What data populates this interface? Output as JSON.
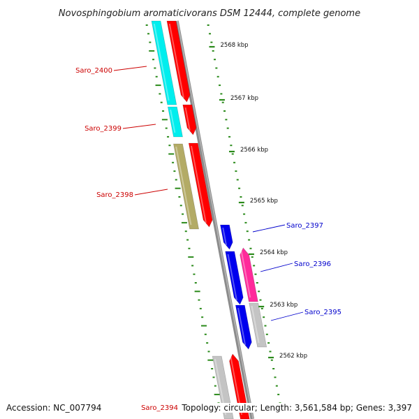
{
  "title": "Novosphingobium aromaticivorans DSM 12444, complete genome",
  "footer": {
    "accession": "Accession: NC_007794",
    "topology": "Topology: circular; Length: 3,561,584 bp; Genes: 3,397"
  },
  "colors": {
    "forward_label": "#cc0000",
    "reverse_label": "#0000cc",
    "backbone": "#8c8c8c",
    "tick": "#2a8a1a",
    "cyan": "#00eeee",
    "red": "#ff0000",
    "olive": "#b3ab66",
    "blue": "#0000ee",
    "magenta": "#ff2a9a",
    "gray": "#c4c4c4"
  },
  "scale_labels": [
    "2568 kbp",
    "2567 kbp",
    "2566 kbp",
    "2565 kbp",
    "2564 kbp",
    "2563 kbp",
    "2562 kbp"
  ],
  "gene_labels": [
    {
      "name": "Saro_2400",
      "strand": "forward"
    },
    {
      "name": "Saro_2399",
      "strand": "forward"
    },
    {
      "name": "Saro_2398",
      "strand": "forward"
    },
    {
      "name": "Saro_2397",
      "strand": "reverse"
    },
    {
      "name": "Saro_2396",
      "strand": "reverse"
    },
    {
      "name": "Saro_2395",
      "strand": "reverse"
    },
    {
      "name": "Saro_2394",
      "strand": "forward"
    }
  ]
}
